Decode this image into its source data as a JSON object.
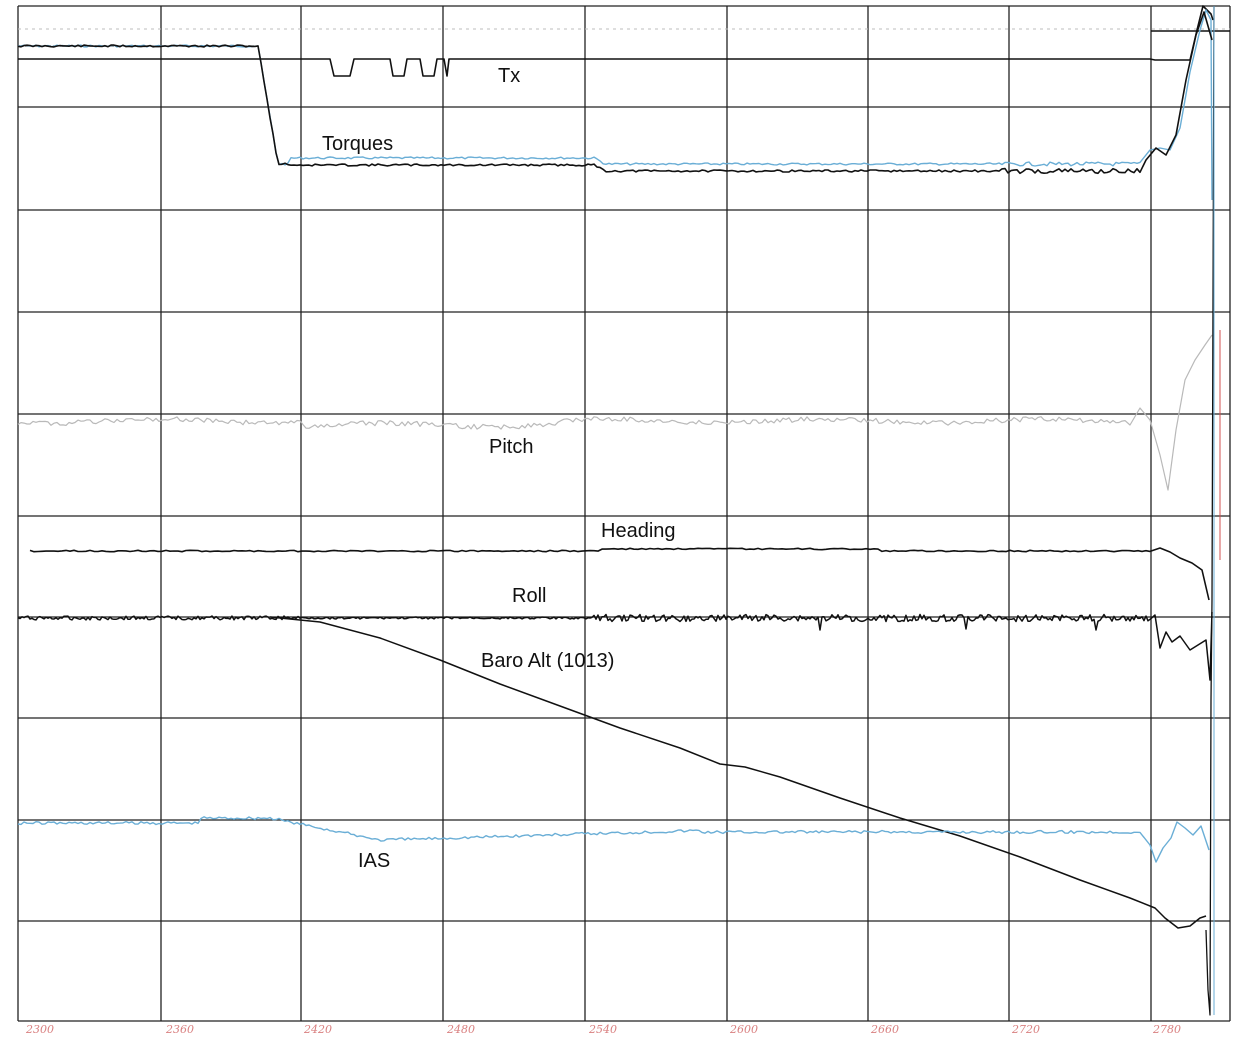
{
  "chart_data": {
    "type": "line",
    "title": "",
    "xlabel": "",
    "ylabel": "",
    "grid": true,
    "x_ticks": [
      "2300",
      "2360",
      "2420",
      "2480",
      "2540",
      "2600",
      "2660",
      "2720",
      "2780"
    ],
    "series": [
      {
        "name": "Tx",
        "color": "#111111"
      },
      {
        "name": "Torques",
        "color": "#111111",
        "color2": "#6aaed6"
      },
      {
        "name": "Pitch",
        "color": "#b9b9b9"
      },
      {
        "name": "Heading",
        "color": "#111111"
      },
      {
        "name": "Roll",
        "color": "#111111"
      },
      {
        "name": "Baro Alt (1013)",
        "color": "#111111"
      },
      {
        "name": "IAS",
        "color": "#6aaed6"
      }
    ]
  }
}
